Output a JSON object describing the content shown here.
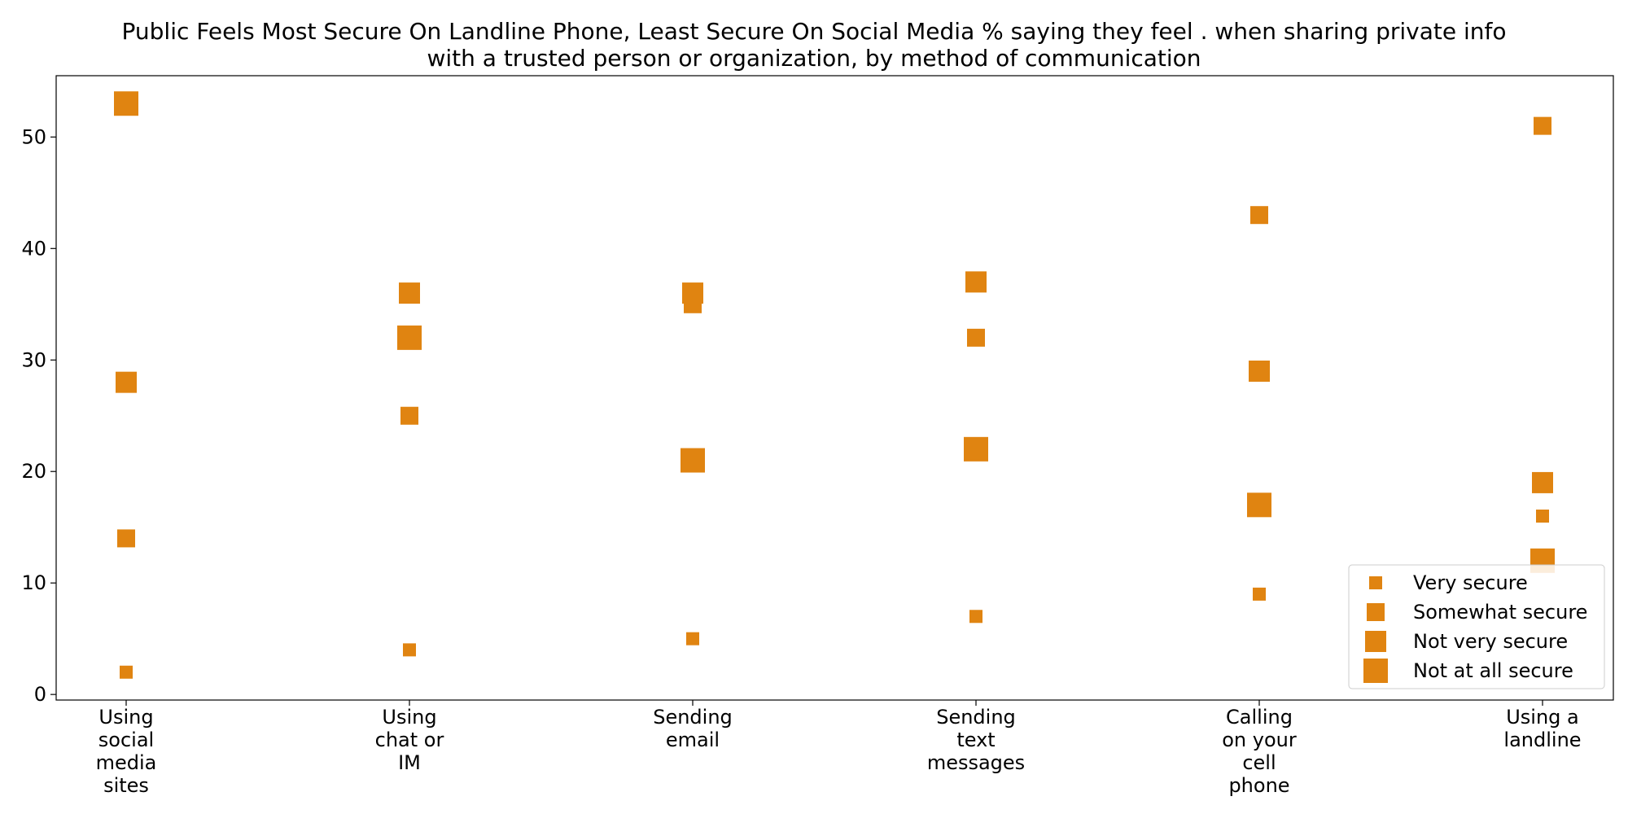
{
  "chart_data": {
    "type": "scatter",
    "title": "Public Feels Most Secure On Landline Phone, Least Secure On Social Media % saying they feel . when sharing private info\nwith a trusted person or organization, by method of communication",
    "xlabel": "",
    "ylabel": "",
    "categories": [
      "Using\nsocial\nmedia\nsites",
      "Using\nchat or\nIM",
      "Sending\nemail",
      "Sending\ntext\nmessages",
      "Calling\non your\ncell\nphone",
      "Using a\nlandline"
    ],
    "series": [
      {
        "name": "Very secure",
        "values": [
          2,
          4,
          5,
          7,
          9,
          16
        ]
      },
      {
        "name": "Somewhat secure",
        "values": [
          14,
          25,
          35,
          32,
          43,
          51
        ]
      },
      {
        "name": "Not very secure",
        "values": [
          28,
          36,
          36,
          37,
          29,
          19
        ]
      },
      {
        "name": "Not at all secure",
        "values": [
          53,
          32,
          21,
          22,
          17,
          12
        ]
      }
    ],
    "ylim": [
      -0.5,
      55.5
    ],
    "yticks": [
      0,
      10,
      20,
      30,
      40,
      50
    ],
    "grid": false,
    "legend_position": "lower-right",
    "marker_color": "#E08411"
  }
}
